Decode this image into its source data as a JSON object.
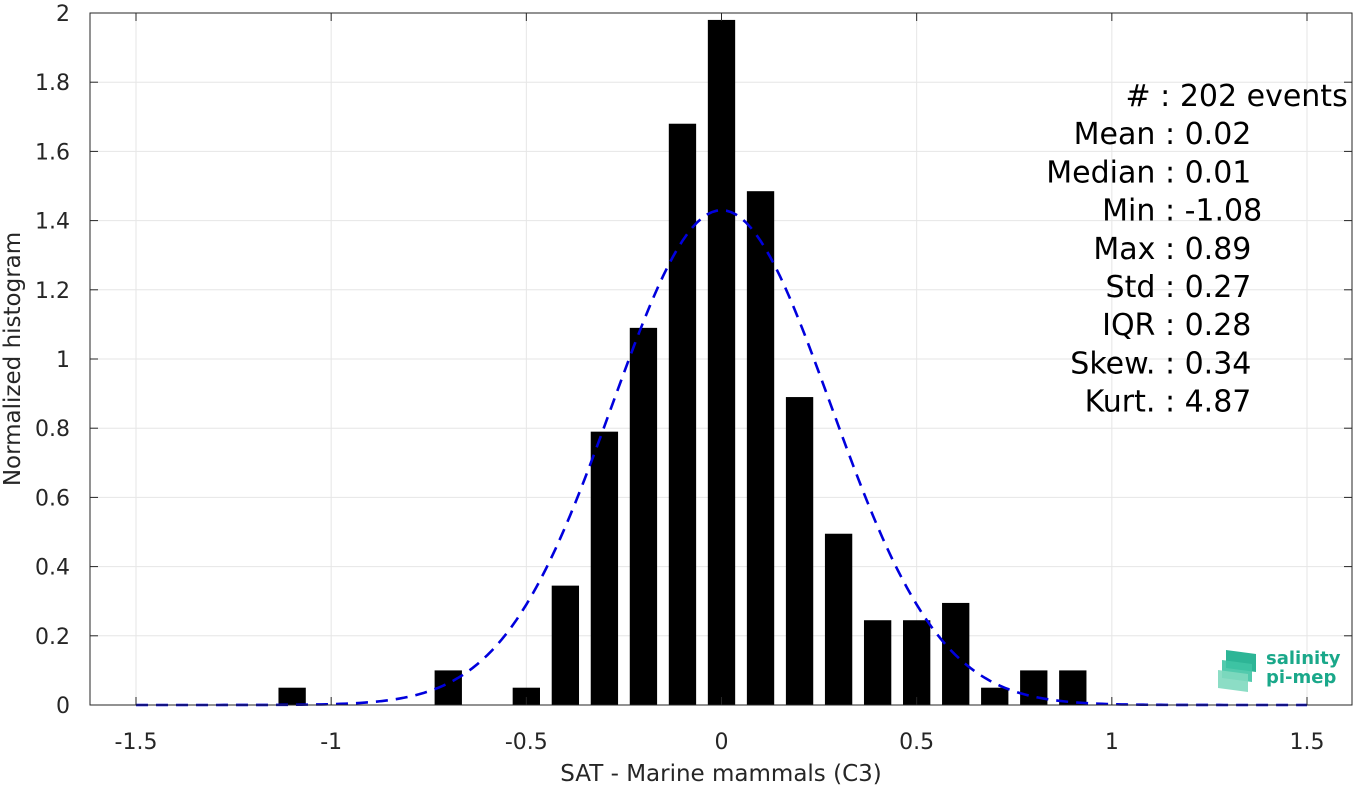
{
  "chart_data": {
    "type": "bar",
    "xlabel": "SAT - Marine mammals (C3)",
    "ylabel": "Normalized histogram",
    "xlim": [
      -1.5,
      1.5
    ],
    "ylim": [
      0,
      2
    ],
    "xticks": [
      -1.5,
      -1,
      -0.5,
      0,
      0.5,
      1,
      1.5
    ],
    "xtick_labels": [
      "-1.5",
      "-1",
      "-0.5",
      "0",
      "0.5",
      "1",
      "1.5"
    ],
    "yticks": [
      0,
      0.2,
      0.4,
      0.6,
      0.8,
      1,
      1.2,
      1.4,
      1.6,
      1.8,
      2
    ],
    "ytick_labels": [
      "0",
      "0.2",
      "0.4",
      "0.6",
      "0.8",
      "1",
      "1.2",
      "1.4",
      "1.6",
      "1.8",
      "2"
    ],
    "grid": true,
    "bar_color": "#000000",
    "bar_width": 0.07,
    "bins": [
      {
        "x": -1.1,
        "y": 0.05
      },
      {
        "x": -0.7,
        "y": 0.1
      },
      {
        "x": -0.5,
        "y": 0.05
      },
      {
        "x": -0.4,
        "y": 0.345
      },
      {
        "x": -0.3,
        "y": 0.79
      },
      {
        "x": -0.2,
        "y": 1.09
      },
      {
        "x": -0.1,
        "y": 1.68
      },
      {
        "x": 0.0,
        "y": 1.98
      },
      {
        "x": 0.1,
        "y": 1.485
      },
      {
        "x": 0.2,
        "y": 0.89
      },
      {
        "x": 0.3,
        "y": 0.495
      },
      {
        "x": 0.4,
        "y": 0.245
      },
      {
        "x": 0.5,
        "y": 0.245
      },
      {
        "x": 0.6,
        "y": 0.295
      },
      {
        "x": 0.7,
        "y": 0.05
      },
      {
        "x": 0.8,
        "y": 0.1
      },
      {
        "x": 0.9,
        "y": 0.1
      }
    ],
    "fit_curve": {
      "color": "#0000dd",
      "style": "dashed",
      "mean": 0.0,
      "std": 0.28,
      "peak": 1.43,
      "x_range": [
        -1.5,
        1.5
      ]
    },
    "stats": [
      {
        "label": "#  ",
        "sep": ": ",
        "value": "202 events"
      },
      {
        "label": "Mean",
        "sep": " : ",
        "value": "0.02"
      },
      {
        "label": "Median",
        "sep": " : ",
        "value": "0.01"
      },
      {
        "label": "Min",
        "sep": " : ",
        "value": "-1.08"
      },
      {
        "label": "Max",
        "sep": " : ",
        "value": "0.89"
      },
      {
        "label": "Std",
        "sep": " : ",
        "value": "0.27"
      },
      {
        "label": "IQR",
        "sep": " : ",
        "value": "0.28"
      },
      {
        "label": "Skew.",
        "sep": " : ",
        "value": "0.34"
      },
      {
        "label": "Kurt.",
        "sep": " : ",
        "value": "4.87"
      }
    ]
  },
  "logo": {
    "line1": "salinity",
    "line2": "pi-mep",
    "color": "#1aa88a"
  }
}
